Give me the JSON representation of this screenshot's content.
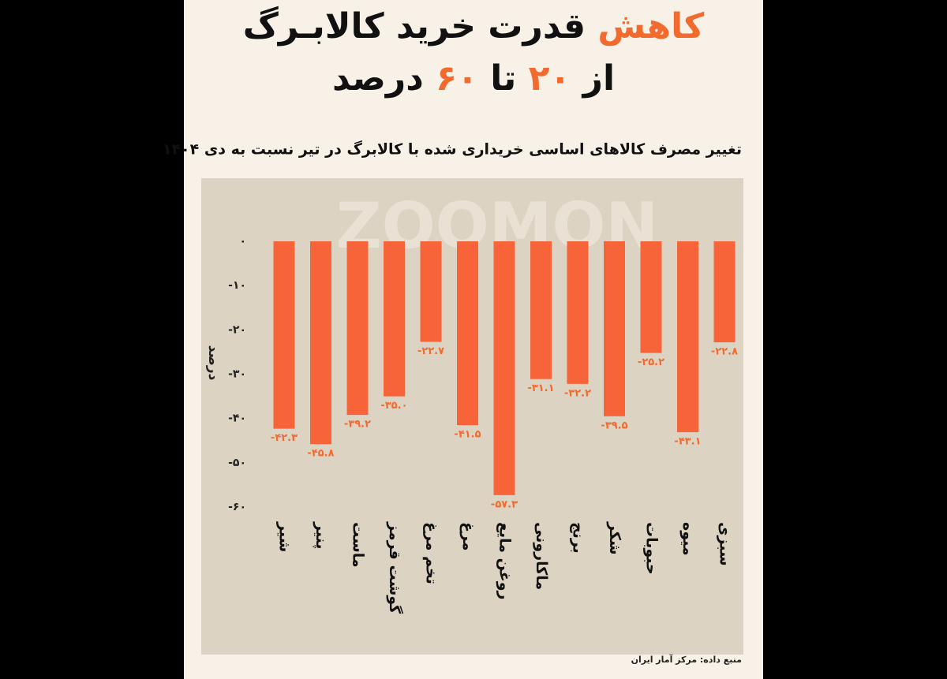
{
  "chart_data": {
    "type": "bar",
    "title": [
      [
        {
          "text": "کاهش",
          "color": "#f26a2e"
        },
        {
          "text": "قدرت خرید کالابـرگ",
          "color": "#111111"
        }
      ],
      [
        {
          "text": "از",
          "color": "#111111"
        },
        {
          "text": "۲۰",
          "color": "#f26a2e"
        },
        {
          "text": "تا",
          "color": "#111111"
        },
        {
          "text": "۶۰",
          "color": "#f26a2e"
        },
        {
          "text": "درصد",
          "color": "#111111"
        }
      ]
    ],
    "subtitle": "تغییر مصرف کالاهای اساسی خریداری شده با کالابرگ در تیر نسبت به دی ۱۴۰۴",
    "y_label": "درصد",
    "watermark": "ZOOMON",
    "source": "منبع داده: مرکز آمار ایران",
    "categories": [
      "شیر",
      "پنیر",
      "ماست",
      "گوشت قرمز",
      "تخم مرغ",
      "مرغ",
      "روغن مایع",
      "ماکارونی",
      "برنج",
      "شکر",
      "حبوبات",
      "میوه",
      "سبزی"
    ],
    "values": [
      -42.3,
      -45.8,
      -39.2,
      -35.0,
      -22.7,
      -41.5,
      -57.3,
      -31.1,
      -32.2,
      -39.5,
      -25.2,
      -43.1,
      -22.8
    ],
    "value_labels": [
      "-۴۲.۳",
      "-۴۵.۸",
      "-۳۹.۲",
      "-۳۵.۰",
      "-۲۲.۷",
      "-۴۱.۵",
      "-۵۷.۳",
      "-۳۱.۱",
      "-۳۲.۲",
      "-۳۹.۵",
      "-۲۵.۲",
      "-۴۳.۱",
      "-۲۲.۸"
    ],
    "color": "#f7643a",
    "ylim": [
      -60,
      0
    ],
    "yticks": [
      {
        "value": 0,
        "label": "۰"
      },
      {
        "value": -10,
        "label": "-۱۰"
      },
      {
        "value": -20,
        "label": "-۲۰"
      },
      {
        "value": -30,
        "label": "-۳۰"
      },
      {
        "value": -40,
        "label": "-۴۰"
      },
      {
        "value": -50,
        "label": "-۵۰"
      },
      {
        "value": -60,
        "label": "-۶۰"
      }
    ]
  }
}
